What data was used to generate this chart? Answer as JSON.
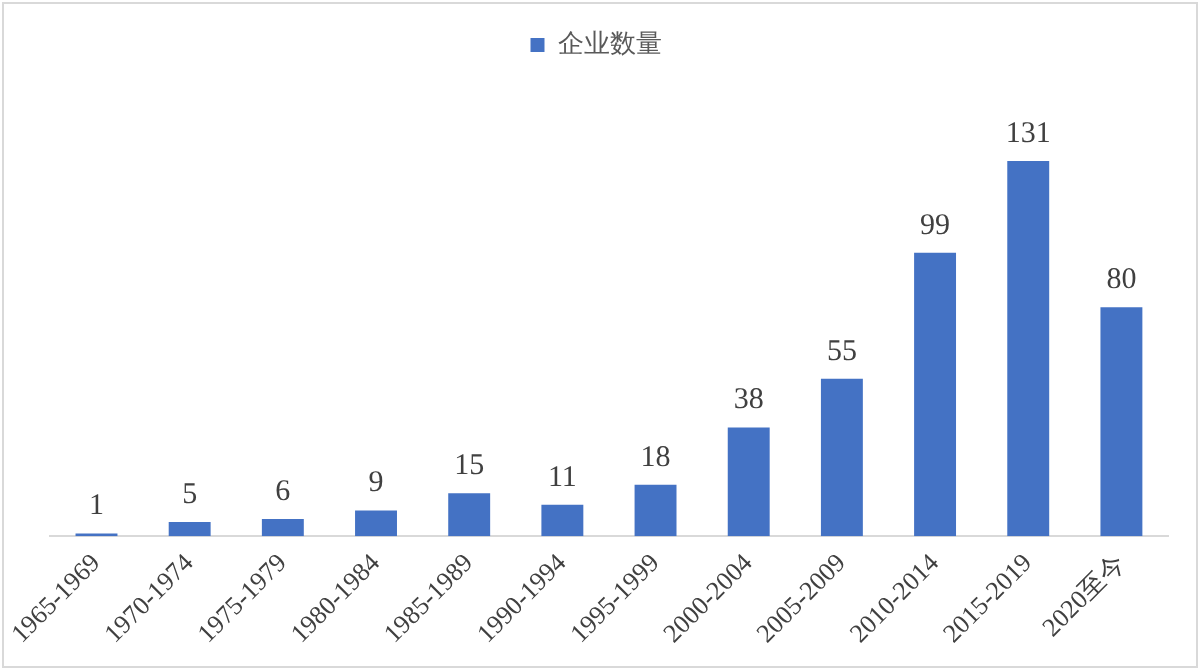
{
  "chart_data": {
    "type": "bar",
    "categories": [
      "1965-1969",
      "1970-1974",
      "1975-1979",
      "1980-1984",
      "1985-1989",
      "1990-1994",
      "1995-1999",
      "2000-2004",
      "2005-2009",
      "2010-2014",
      "2015-2019",
      "2020至今"
    ],
    "series": [
      {
        "name": "企业数量",
        "color": "#4472c4",
        "values": [
          1,
          5,
          6,
          9,
          15,
          11,
          18,
          38,
          55,
          99,
          131,
          80
        ]
      }
    ],
    "data_labels": true,
    "legend": "top",
    "grid": false
  }
}
